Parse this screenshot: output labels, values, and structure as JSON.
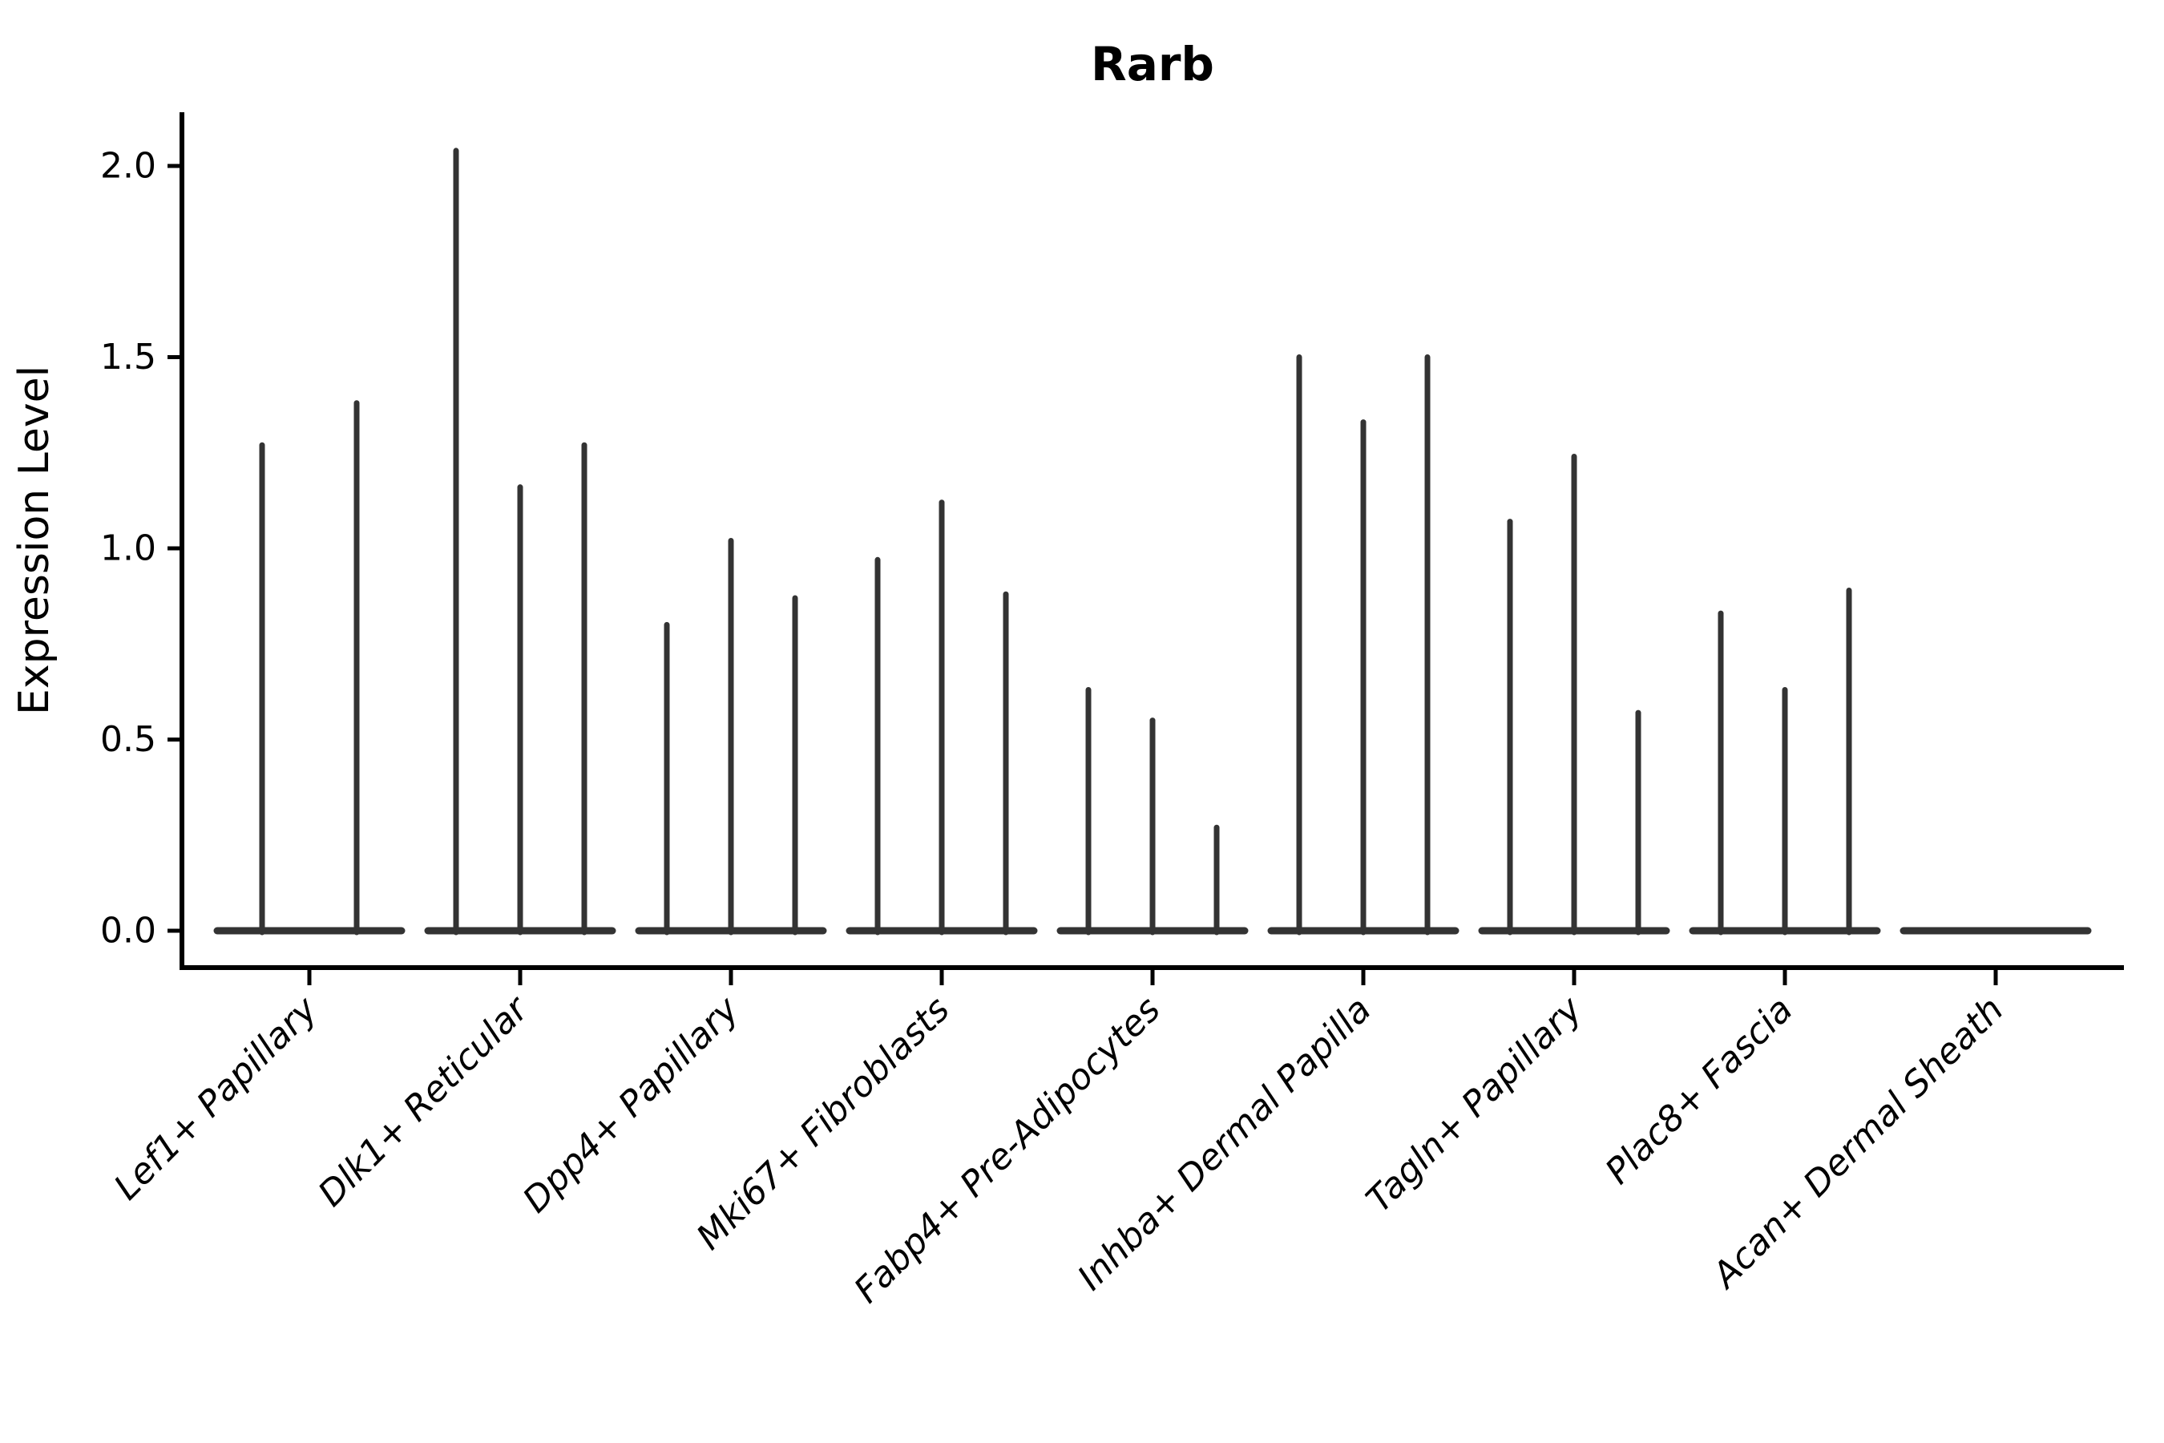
{
  "title": "Rarb",
  "axes": {
    "ylabel": "Expression Level",
    "xlabel": ""
  },
  "colors": {
    "violin": "#333333",
    "axis": "#000000",
    "text": "#000000",
    "background": "#ffffff"
  },
  "chart_data": {
    "type": "violin",
    "title": "Rarb",
    "ylabel": "Expression Level",
    "xlabel": "",
    "grid": false,
    "legend_position": "none",
    "ylim": [
      -0.1,
      2.14
    ],
    "yticks": [
      0.0,
      0.5,
      1.0,
      1.5,
      2.0
    ],
    "ytick_labels": [
      "0.0",
      "0.5",
      "1.0",
      "1.5",
      "2.0"
    ],
    "categories": [
      "Lef1+ Papillary",
      "Dlk1+ Reticular",
      "Dpp4+ Papillary",
      "Mki67+ Fibroblasts",
      "Fabp4+ Pre-Adipocytes",
      "Inhba+ Dermal Papilla",
      "Tagln+ Papillary",
      "Plac8+ Fascia",
      "Acan+ Dermal Sheath"
    ],
    "violins": [
      {
        "category": "Lef1+ Papillary",
        "spike_heights": [
          1.27,
          1.38
        ]
      },
      {
        "category": "Dlk1+ Reticular",
        "spike_heights": [
          2.04,
          1.16,
          1.27
        ]
      },
      {
        "category": "Dpp4+ Papillary",
        "spike_heights": [
          0.8,
          1.02,
          0.87
        ]
      },
      {
        "category": "Mki67+ Fibroblasts",
        "spike_heights": [
          0.97,
          1.12,
          0.88
        ]
      },
      {
        "category": "Fabp4+ Pre-Adipocytes",
        "spike_heights": [
          0.63,
          0.55,
          0.27
        ]
      },
      {
        "category": "Inhba+ Dermal Papilla",
        "spike_heights": [
          1.5,
          1.33,
          1.5
        ]
      },
      {
        "category": "Tagln+ Papillary",
        "spike_heights": [
          1.07,
          1.24,
          0.57
        ]
      },
      {
        "category": "Plac8+ Fascia",
        "spike_heights": [
          0.83,
          0.63,
          0.89
        ]
      },
      {
        "category": "Acan+ Dermal Sheath",
        "spike_heights": []
      }
    ],
    "violin_note": "Each category shows thin zero-width violins: a flat wide base at expression 0 plus narrow vertical density spikes reaching the listed maxima; last category is entirely flat at 0."
  }
}
